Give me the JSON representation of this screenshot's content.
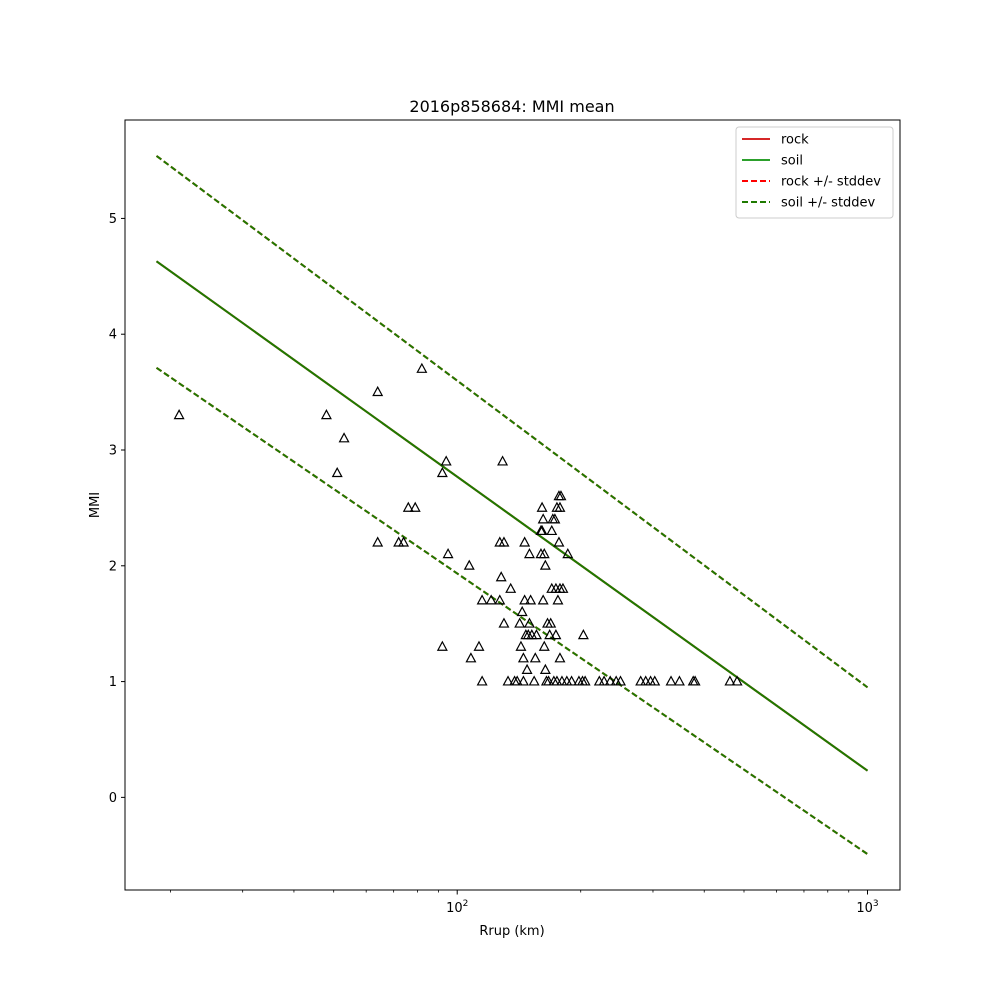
{
  "chart_data": {
    "type": "scatter",
    "title": "2016p858684: MMI mean",
    "xlabel": "Rrup (km)",
    "ylabel": "MMI",
    "xscale": "log",
    "xlim": [
      15.5,
      1200
    ],
    "ylim": [
      -0.8,
      5.85
    ],
    "yticks": [
      0,
      1,
      2,
      3,
      4,
      5
    ],
    "xticks_major": [
      {
        "value": 100,
        "base": "10",
        "exp": "2"
      },
      {
        "value": 1000,
        "base": "10",
        "exp": "3"
      }
    ],
    "xticks_minor": [
      20,
      30,
      40,
      50,
      60,
      70,
      80,
      90,
      200,
      300,
      400,
      500,
      600,
      700,
      800,
      900
    ],
    "grid": false,
    "legend": {
      "placement": "top-right",
      "entries": [
        {
          "label": "rock",
          "color": "#d62728",
          "style": "solid"
        },
        {
          "label": "soil",
          "color": "#2ca02c",
          "style": "solid"
        },
        {
          "label": "rock +/- stddev",
          "color": "#ff0000",
          "style": "dashed"
        },
        {
          "label": "soil +/- stddev",
          "color": "#1f7a00",
          "style": "dashed"
        }
      ]
    },
    "series": [
      {
        "name": "rock",
        "kind": "line",
        "style": "solid",
        "color": "#cc0000",
        "points": [
          [
            18.5,
            4.63
          ],
          [
            1000,
            0.23
          ]
        ]
      },
      {
        "name": "soil",
        "kind": "line",
        "style": "solid",
        "color": "#1f7a00",
        "points": [
          [
            18.5,
            4.63
          ],
          [
            1000,
            0.23
          ]
        ]
      },
      {
        "name": "rock +/- stddev",
        "kind": "line",
        "style": "dashed",
        "color": "#ff0000",
        "points": [
          [
            18.5,
            5.54
          ],
          [
            1000,
            0.95
          ]
        ]
      },
      {
        "name": "rock +/- stddev",
        "kind": "line",
        "style": "dashed",
        "color": "#ff0000",
        "points": [
          [
            18.5,
            3.71
          ],
          [
            1000,
            -0.49
          ]
        ]
      },
      {
        "name": "soil +/- stddev",
        "kind": "line",
        "style": "dashed",
        "color": "#1f7a00",
        "points": [
          [
            18.5,
            5.54
          ],
          [
            1000,
            0.95
          ]
        ]
      },
      {
        "name": "soil +/- stddev",
        "kind": "line",
        "style": "dashed",
        "color": "#1f7a00",
        "points": [
          [
            18.5,
            3.71
          ],
          [
            1000,
            -0.49
          ]
        ]
      }
    ],
    "observations": {
      "marker": "triangle",
      "color": "#000000",
      "points": [
        [
          21,
          3.3
        ],
        [
          48,
          3.3
        ],
        [
          51,
          2.8
        ],
        [
          53,
          3.1
        ],
        [
          64,
          3.5
        ],
        [
          64,
          2.2
        ],
        [
          72,
          2.2
        ],
        [
          74,
          2.2
        ],
        [
          76,
          2.5
        ],
        [
          79,
          2.5
        ],
        [
          82,
          3.7
        ],
        [
          92,
          2.8
        ],
        [
          94,
          2.9
        ],
        [
          95,
          2.1
        ],
        [
          92,
          1.3
        ],
        [
          107,
          2.0
        ],
        [
          108,
          1.2
        ],
        [
          113,
          1.3
        ],
        [
          115,
          1.7
        ],
        [
          115,
          1.0
        ],
        [
          121,
          1.7
        ],
        [
          127,
          1.7
        ],
        [
          128,
          1.9
        ],
        [
          127,
          2.2
        ],
        [
          129,
          2.9
        ],
        [
          130,
          2.2
        ],
        [
          130,
          1.5
        ],
        [
          133,
          1.0
        ],
        [
          135,
          1.8
        ],
        [
          138,
          1.0
        ],
        [
          140,
          1.0
        ],
        [
          142,
          1.5
        ],
        [
          143,
          1.3
        ],
        [
          144,
          1.6
        ],
        [
          145,
          1.0
        ],
        [
          145,
          1.2
        ],
        [
          146,
          1.7
        ],
        [
          146,
          2.2
        ],
        [
          147,
          1.4
        ],
        [
          148,
          1.1
        ],
        [
          149,
          1.4
        ],
        [
          150,
          1.5
        ],
        [
          150,
          2.1
        ],
        [
          151,
          1.7
        ],
        [
          152,
          1.4
        ],
        [
          154,
          1.0
        ],
        [
          155,
          1.2
        ],
        [
          156,
          1.4
        ],
        [
          160,
          2.1
        ],
        [
          160,
          2.3
        ],
        [
          161,
          2.3
        ],
        [
          161,
          2.5
        ],
        [
          162,
          2.4
        ],
        [
          162,
          1.7
        ],
        [
          163,
          2.1
        ],
        [
          163,
          1.3
        ],
        [
          164,
          1.1
        ],
        [
          164,
          2.0
        ],
        [
          165,
          1.0
        ],
        [
          166,
          1.5
        ],
        [
          167,
          1.0
        ],
        [
          168,
          1.4
        ],
        [
          169,
          1.5
        ],
        [
          170,
          1.8
        ],
        [
          170,
          2.3
        ],
        [
          171,
          2.4
        ],
        [
          172,
          1.0
        ],
        [
          173,
          2.4
        ],
        [
          174,
          1.8
        ],
        [
          174,
          1.4
        ],
        [
          175,
          2.5
        ],
        [
          175,
          1.0
        ],
        [
          176,
          1.7
        ],
        [
          177,
          2.6
        ],
        [
          177,
          2.2
        ],
        [
          178,
          1.8
        ],
        [
          178,
          2.5
        ],
        [
          178,
          1.2
        ],
        [
          179,
          2.6
        ],
        [
          180,
          1.0
        ],
        [
          181,
          1.8
        ],
        [
          185,
          1.0
        ],
        [
          186,
          2.1
        ],
        [
          190,
          1.0
        ],
        [
          198,
          1.0
        ],
        [
          202,
          1.0
        ],
        [
          203,
          1.4
        ],
        [
          205,
          1.0
        ],
        [
          222,
          1.0
        ],
        [
          228,
          1.0
        ],
        [
          236,
          1.0
        ],
        [
          244,
          1.0
        ],
        [
          250,
          1.0
        ],
        [
          280,
          1.0
        ],
        [
          288,
          1.0
        ],
        [
          296,
          1.0
        ],
        [
          303,
          1.0
        ],
        [
          332,
          1.0
        ],
        [
          348,
          1.0
        ],
        [
          376,
          1.0
        ],
        [
          380,
          1.0
        ],
        [
          462,
          1.0
        ],
        [
          481,
          1.0
        ]
      ]
    }
  }
}
